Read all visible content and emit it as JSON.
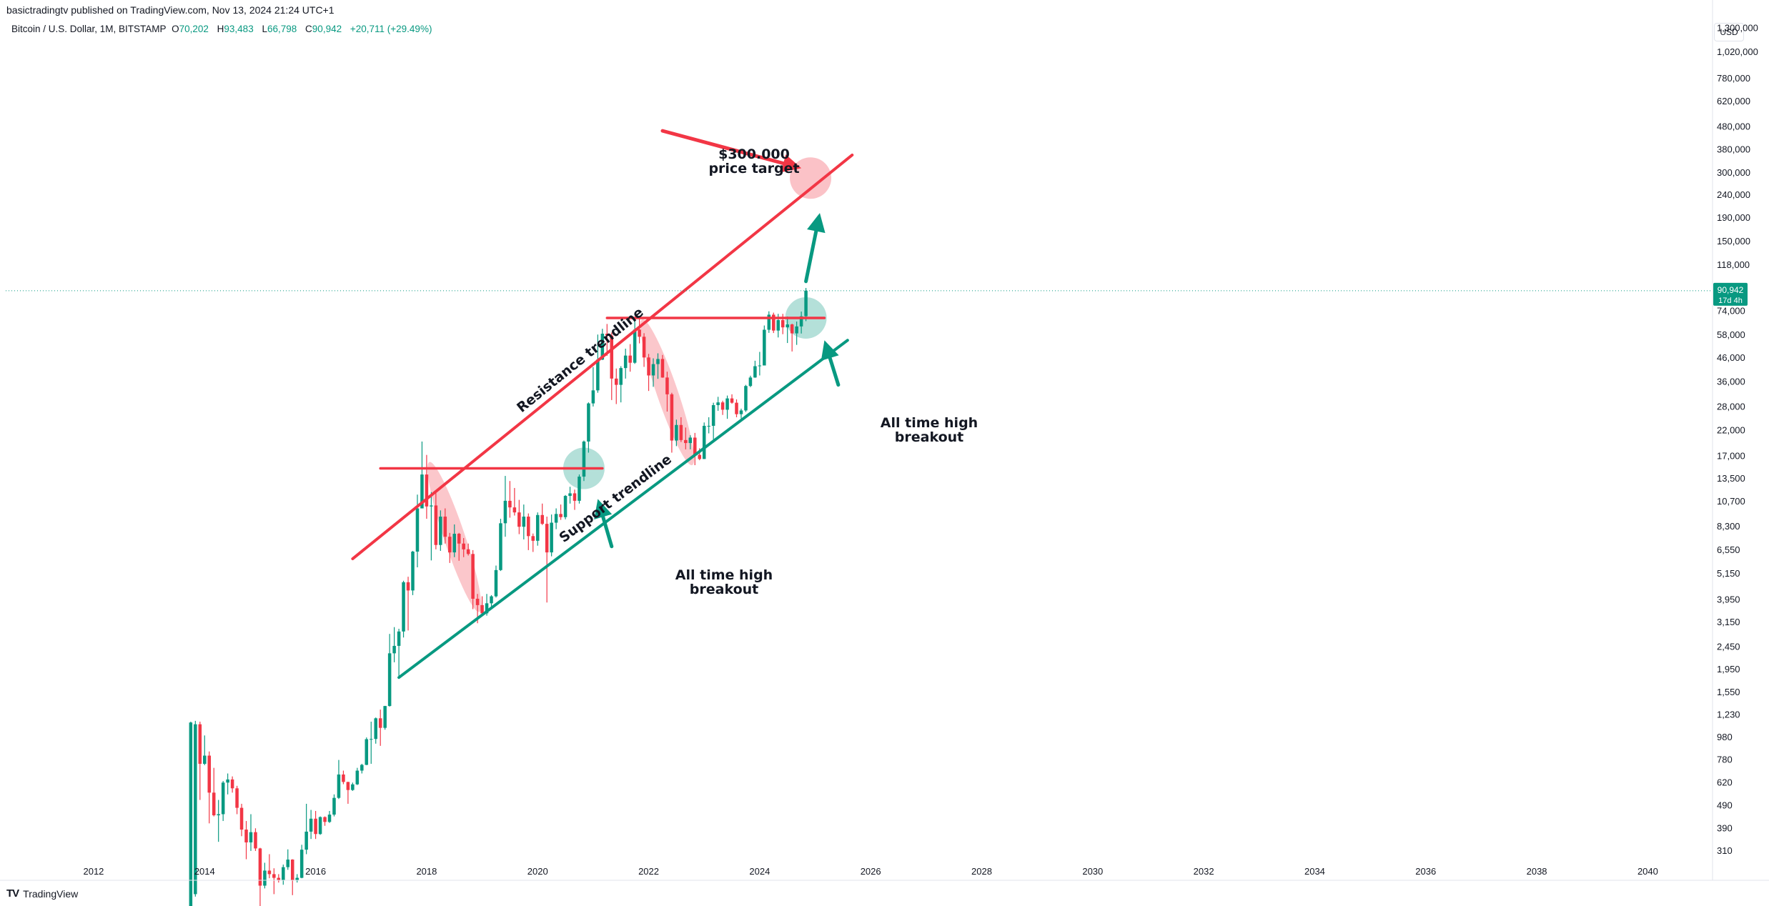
{
  "header": {
    "published": "basictradingtv published on TradingView.com, Nov 13, 2024 21:24 UTC+1"
  },
  "symbol": {
    "name": "Bitcoin / U.S. Dollar, 1M, BITSTAMP",
    "open_label": "O",
    "open": "70,202",
    "high_label": "H",
    "high": "93,483",
    "low_label": "L",
    "low": "66,798",
    "close_label": "C",
    "close": "90,942",
    "change": "+20,711 (+29.49%)"
  },
  "currency_button": "USD",
  "footer": {
    "logo_mark": "TV",
    "logo_text": "TradingView"
  },
  "colors": {
    "up": "#089981",
    "down": "#f23645",
    "resistance": "#f23645",
    "support": "#089981",
    "accent_teal": "#089981"
  },
  "chart_data": {
    "type": "candlestick",
    "title": "",
    "scale": "log",
    "ylim": [
      270,
      1500000
    ],
    "xlim": [
      "2010-06",
      "2041-03"
    ],
    "x_ticks": [
      "2012",
      "2014",
      "2016",
      "2018",
      "2020",
      "2022",
      "2024",
      "2026",
      "2028",
      "2030",
      "2032",
      "2034",
      "2036",
      "2038",
      "2040"
    ],
    "y_ticks": [
      {
        "value": 1300000,
        "label": "1,300,000"
      },
      {
        "value": 1020000,
        "label": "1,020,000"
      },
      {
        "value": 780000,
        "label": "780,000"
      },
      {
        "value": 620000,
        "label": "620,000"
      },
      {
        "value": 480000,
        "label": "480,000"
      },
      {
        "value": 380000,
        "label": "380,000"
      },
      {
        "value": 300000,
        "label": "300,000"
      },
      {
        "value": 240000,
        "label": "240,000"
      },
      {
        "value": 190000,
        "label": "190,000"
      },
      {
        "value": 150000,
        "label": "150,000"
      },
      {
        "value": 118000,
        "label": "118,000"
      },
      {
        "value": 74000,
        "label": "74,000"
      },
      {
        "value": 58000,
        "label": "58,000"
      },
      {
        "value": 46000,
        "label": "46,000"
      },
      {
        "value": 36000,
        "label": "36,000"
      },
      {
        "value": 28000,
        "label": "28,000"
      },
      {
        "value": 22000,
        "label": "22,000"
      },
      {
        "value": 17000,
        "label": "17,000"
      },
      {
        "value": 13500,
        "label": "13,500"
      },
      {
        "value": 10700,
        "label": "10,700"
      },
      {
        "value": 8300,
        "label": "8,300"
      },
      {
        "value": 6550,
        "label": "6,550"
      },
      {
        "value": 5150,
        "label": "5,150"
      },
      {
        "value": 3950,
        "label": "3,950"
      },
      {
        "value": 3150,
        "label": "3,150"
      },
      {
        "value": 2450,
        "label": "2,450"
      },
      {
        "value": 1950,
        "label": "1,950"
      },
      {
        "value": 1550,
        "label": "1,550"
      },
      {
        "value": 1230,
        "label": "1,230"
      },
      {
        "value": 980,
        "label": "980"
      },
      {
        "value": 780,
        "label": "780"
      },
      {
        "value": 620,
        "label": "620"
      },
      {
        "value": 490,
        "label": "490"
      },
      {
        "value": 390,
        "label": "390"
      },
      {
        "value": 310,
        "label": "310"
      }
    ],
    "last_price": {
      "value": 90942,
      "label": "90,942",
      "countdown": "17d 4h"
    },
    "candles": [
      [
        "2013-10",
        130,
        1150,
        130,
        1140
      ],
      [
        "2013-11",
        200,
        1160,
        195,
        1120
      ],
      [
        "2013-12",
        1120,
        1150,
        520,
        750
      ],
      [
        "2014-01",
        750,
        1000,
        740,
        815
      ],
      [
        "2014-02",
        815,
        850,
        410,
        560
      ],
      [
        "2014-03",
        560,
        720,
        440,
        445
      ],
      [
        "2014-04",
        445,
        520,
        340,
        450
      ],
      [
        "2014-05",
        450,
        630,
        420,
        620
      ],
      [
        "2014-06",
        620,
        680,
        550,
        640
      ],
      [
        "2014-07",
        640,
        660,
        560,
        585
      ],
      [
        "2014-08",
        585,
        600,
        450,
        480
      ],
      [
        "2014-09",
        480,
        500,
        360,
        385
      ],
      [
        "2014-10",
        385,
        420,
        285,
        338
      ],
      [
        "2014-11",
        338,
        450,
        310,
        375
      ],
      [
        "2014-12",
        375,
        390,
        310,
        318
      ],
      [
        "2015-01",
        318,
        320,
        165,
        218
      ],
      [
        "2015-02",
        218,
        275,
        212,
        254
      ],
      [
        "2015-03",
        254,
        300,
        235,
        245
      ],
      [
        "2015-04",
        245,
        260,
        200,
        236
      ],
      [
        "2015-05",
        236,
        245,
        225,
        230
      ],
      [
        "2015-06",
        230,
        270,
        220,
        263
      ],
      [
        "2015-07",
        263,
        315,
        256,
        284
      ],
      [
        "2015-08",
        284,
        285,
        198,
        230
      ],
      [
        "2015-09",
        230,
        245,
        225,
        236
      ],
      [
        "2015-10",
        236,
        330,
        235,
        314
      ],
      [
        "2015-11",
        314,
        500,
        300,
        377
      ],
      [
        "2015-12",
        377,
        470,
        350,
        430
      ],
      [
        "2016-01",
        430,
        465,
        350,
        368
      ],
      [
        "2016-02",
        368,
        440,
        365,
        437
      ],
      [
        "2016-03",
        437,
        440,
        400,
        416
      ],
      [
        "2016-04",
        416,
        465,
        412,
        448
      ],
      [
        "2016-05",
        448,
        550,
        440,
        531
      ],
      [
        "2016-06",
        531,
        780,
        525,
        673
      ],
      [
        "2016-07",
        673,
        700,
        610,
        624
      ],
      [
        "2016-08",
        624,
        625,
        500,
        575
      ],
      [
        "2016-09",
        575,
        620,
        570,
        609
      ],
      [
        "2016-10",
        609,
        720,
        605,
        700
      ],
      [
        "2016-11",
        700,
        750,
        680,
        742
      ],
      [
        "2016-12",
        742,
        980,
        740,
        963
      ],
      [
        "2017-01",
        963,
        1150,
        750,
        965
      ],
      [
        "2017-02",
        965,
        1200,
        920,
        1190
      ],
      [
        "2017-03",
        1190,
        1300,
        900,
        1080
      ],
      [
        "2017-04",
        1080,
        1350,
        1060,
        1348
      ],
      [
        "2017-05",
        1348,
        2800,
        1340,
        2300
      ],
      [
        "2017-06",
        2300,
        3000,
        2100,
        2480
      ],
      [
        "2017-07",
        2480,
        2950,
        1800,
        2870
      ],
      [
        "2017-08",
        2870,
        4800,
        2700,
        4730
      ],
      [
        "2017-09",
        4730,
        5000,
        2900,
        4350
      ],
      [
        "2017-10",
        4350,
        6500,
        4150,
        6450
      ],
      [
        "2017-11",
        6450,
        11500,
        5500,
        10000
      ],
      [
        "2017-12",
        10000,
        19700,
        10000,
        14100
      ],
      [
        "2018-01",
        14100,
        17200,
        9000,
        10200
      ],
      [
        "2018-02",
        10200,
        11800,
        5900,
        10300
      ],
      [
        "2018-03",
        10300,
        11700,
        6600,
        6900
      ],
      [
        "2018-04",
        6900,
        9800,
        6500,
        9200
      ],
      [
        "2018-05",
        9200,
        10000,
        7000,
        7500
      ],
      [
        "2018-06",
        7500,
        7800,
        5750,
        6400
      ],
      [
        "2018-07",
        6400,
        8500,
        6100,
        7730
      ],
      [
        "2018-08",
        7730,
        7800,
        5880,
        7000
      ],
      [
        "2018-09",
        7000,
        7400,
        6100,
        6600
      ],
      [
        "2018-10",
        6600,
        7000,
        6200,
        6300
      ],
      [
        "2018-11",
        6300,
        6550,
        3600,
        4000
      ],
      [
        "2018-12",
        4000,
        4200,
        3120,
        3750
      ],
      [
        "2019-01",
        3750,
        4100,
        3350,
        3450
      ],
      [
        "2019-02",
        3450,
        4200,
        3370,
        3820
      ],
      [
        "2019-03",
        3820,
        4150,
        3700,
        4100
      ],
      [
        "2019-04",
        4100,
        5600,
        4050,
        5350
      ],
      [
        "2019-05",
        5350,
        9000,
        5300,
        8600
      ],
      [
        "2019-06",
        8600,
        13900,
        7500,
        10800
      ],
      [
        "2019-07",
        10800,
        13200,
        9100,
        10100
      ],
      [
        "2019-08",
        10100,
        12300,
        9300,
        9600
      ],
      [
        "2019-09",
        9600,
        10900,
        7700,
        8300
      ],
      [
        "2019-10",
        8300,
        10400,
        7300,
        9200
      ],
      [
        "2019-11",
        9200,
        9500,
        6550,
        7550
      ],
      [
        "2019-12",
        7550,
        7750,
        6430,
        7200
      ],
      [
        "2020-01",
        7200,
        9600,
        6850,
        9350
      ],
      [
        "2020-02",
        9350,
        10500,
        8450,
        8550
      ],
      [
        "2020-03",
        8550,
        9200,
        3850,
        6400
      ],
      [
        "2020-04",
        6400,
        9400,
        6150,
        8650
      ],
      [
        "2020-05",
        8650,
        10000,
        8100,
        9450
      ],
      [
        "2020-06",
        9450,
        10400,
        8900,
        9150
      ],
      [
        "2020-07",
        9150,
        11450,
        8950,
        11350
      ],
      [
        "2020-08",
        11350,
        12450,
        10500,
        11650
      ],
      [
        "2020-09",
        11650,
        12100,
        9850,
        10800
      ],
      [
        "2020-10",
        10800,
        14100,
        10500,
        13800
      ],
      [
        "2020-11",
        13800,
        19900,
        13200,
        19700
      ],
      [
        "2020-12",
        19700,
        29300,
        17600,
        29000
      ],
      [
        "2021-01",
        29000,
        41900,
        28100,
        33100
      ],
      [
        "2021-02",
        33100,
        58300,
        32300,
        45200
      ],
      [
        "2021-03",
        45200,
        61800,
        45000,
        58800
      ],
      [
        "2021-04",
        58800,
        64900,
        47000,
        57700
      ],
      [
        "2021-05",
        57700,
        59500,
        30000,
        37300
      ],
      [
        "2021-06",
        37300,
        41300,
        28800,
        35000
      ],
      [
        "2021-07",
        35000,
        42300,
        29300,
        41500
      ],
      [
        "2021-08",
        41500,
        50500,
        37300,
        47100
      ],
      [
        "2021-09",
        47100,
        52900,
        40000,
        43800
      ],
      [
        "2021-10",
        43800,
        66900,
        43300,
        61300
      ],
      [
        "2021-11",
        61300,
        69000,
        53300,
        57000
      ],
      [
        "2021-12",
        57000,
        59100,
        42000,
        46200
      ],
      [
        "2022-01",
        46200,
        47900,
        32900,
        38500
      ],
      [
        "2022-02",
        38500,
        45800,
        34300,
        43200
      ],
      [
        "2022-03",
        43200,
        48200,
        37200,
        45500
      ],
      [
        "2022-04",
        45500,
        47400,
        37600,
        37700
      ],
      [
        "2022-05",
        37700,
        40000,
        26700,
        31800
      ],
      [
        "2022-06",
        31800,
        32300,
        17600,
        19900
      ],
      [
        "2022-07",
        19900,
        24600,
        18800,
        23300
      ],
      [
        "2022-08",
        23300,
        25200,
        19600,
        20000
      ],
      [
        "2022-09",
        20000,
        22700,
        18200,
        19400
      ],
      [
        "2022-10",
        19400,
        21000,
        18200,
        20500
      ],
      [
        "2022-11",
        20500,
        21500,
        15500,
        17200
      ],
      [
        "2022-12",
        17200,
        18400,
        16300,
        16500
      ],
      [
        "2023-01",
        16500,
        23900,
        16500,
        23100
      ],
      [
        "2023-02",
        23100,
        25200,
        21400,
        23100
      ],
      [
        "2023-03",
        23100,
        29200,
        19600,
        28500
      ],
      [
        "2023-04",
        28500,
        31000,
        26900,
        29300
      ],
      [
        "2023-05",
        29300,
        29800,
        25800,
        27200
      ],
      [
        "2023-06",
        27200,
        31400,
        24800,
        30500
      ],
      [
        "2023-07",
        30500,
        31800,
        28900,
        29200
      ],
      [
        "2023-08",
        29200,
        30200,
        25200,
        26000
      ],
      [
        "2023-09",
        26000,
        27500,
        24900,
        27000
      ],
      [
        "2023-10",
        27000,
        35000,
        26600,
        34600
      ],
      [
        "2023-11",
        34600,
        38400,
        34200,
        37700
      ],
      [
        "2023-12",
        37700,
        44700,
        37600,
        42300
      ],
      [
        "2024-01",
        42300,
        48900,
        38500,
        42600
      ],
      [
        "2024-02",
        42600,
        63900,
        42600,
        61200
      ],
      [
        "2024-03",
        61200,
        73800,
        59300,
        71300
      ],
      [
        "2024-04",
        71300,
        72800,
        59200,
        60700
      ],
      [
        "2024-05",
        60700,
        71900,
        56600,
        67500
      ],
      [
        "2024-06",
        67500,
        71900,
        58500,
        62700
      ],
      [
        "2024-07",
        62700,
        70000,
        53500,
        64600
      ],
      [
        "2024-08",
        64600,
        65100,
        49100,
        59000
      ],
      [
        "2024-09",
        59000,
        66500,
        52500,
        63300
      ],
      [
        "2024-10",
        63300,
        73600,
        58900,
        70200
      ],
      [
        "2024-11",
        70202,
        93483,
        66798,
        90942
      ]
    ],
    "annotations": {
      "resistance_trendline": {
        "from": [
          "2016-09",
          6000
        ],
        "to": [
          "2025-09",
          360000
        ],
        "label": "Resistance trendline"
      },
      "support_trendline": {
        "from": [
          "2017-07",
          1800
        ],
        "to": [
          "2025-08",
          55000
        ],
        "label": "Support trendline"
      },
      "horizontal_level_2017": {
        "from": [
          "2017-03",
          15000
        ],
        "to": [
          "2021-03",
          15000
        ]
      },
      "horizontal_level_2021": {
        "from": [
          "2021-04",
          69000
        ],
        "to": [
          "2025-03",
          69000
        ]
      },
      "ellipses": [
        {
          "center": [
            "2018-07",
            7500
          ],
          "rx_months": 6,
          "from_value": 3500,
          "to_value": 16000,
          "color": "red"
        },
        {
          "center": [
            "2022-05",
            34000
          ],
          "rx_months": 6,
          "from_value": 15500,
          "to_value": 68000,
          "color": "red"
        }
      ],
      "circles": [
        {
          "center": [
            "2020-11",
            15000
          ],
          "color": "teal"
        },
        {
          "center": [
            "2024-11",
            69000
          ],
          "color": "teal"
        },
        {
          "center": [
            "2024-12",
            285000
          ],
          "color": "red"
        }
      ],
      "arrows": [
        {
          "from": [
            "2022-04",
            460000
          ],
          "to": [
            "2024-10",
            315000
          ],
          "color": "red"
        },
        {
          "from": [
            "2024-11",
            100000
          ],
          "to": [
            "2025-02",
            200000
          ],
          "color": "teal"
        },
        {
          "from": [
            "2025-06",
            35000
          ],
          "to": [
            "2025-03",
            55000
          ],
          "color": "teal"
        },
        {
          "from": [
            "2021-05",
            6800
          ],
          "to": [
            "2021-02",
            11000
          ],
          "color": "teal"
        }
      ],
      "texts": [
        {
          "id": "price_target",
          "lines": [
            "$300.000",
            "price target"
          ]
        },
        {
          "id": "ath_breakout_1",
          "lines": [
            "All time high",
            "breakout"
          ]
        },
        {
          "id": "ath_breakout_2",
          "lines": [
            "All time high",
            "breakout"
          ]
        }
      ]
    }
  }
}
